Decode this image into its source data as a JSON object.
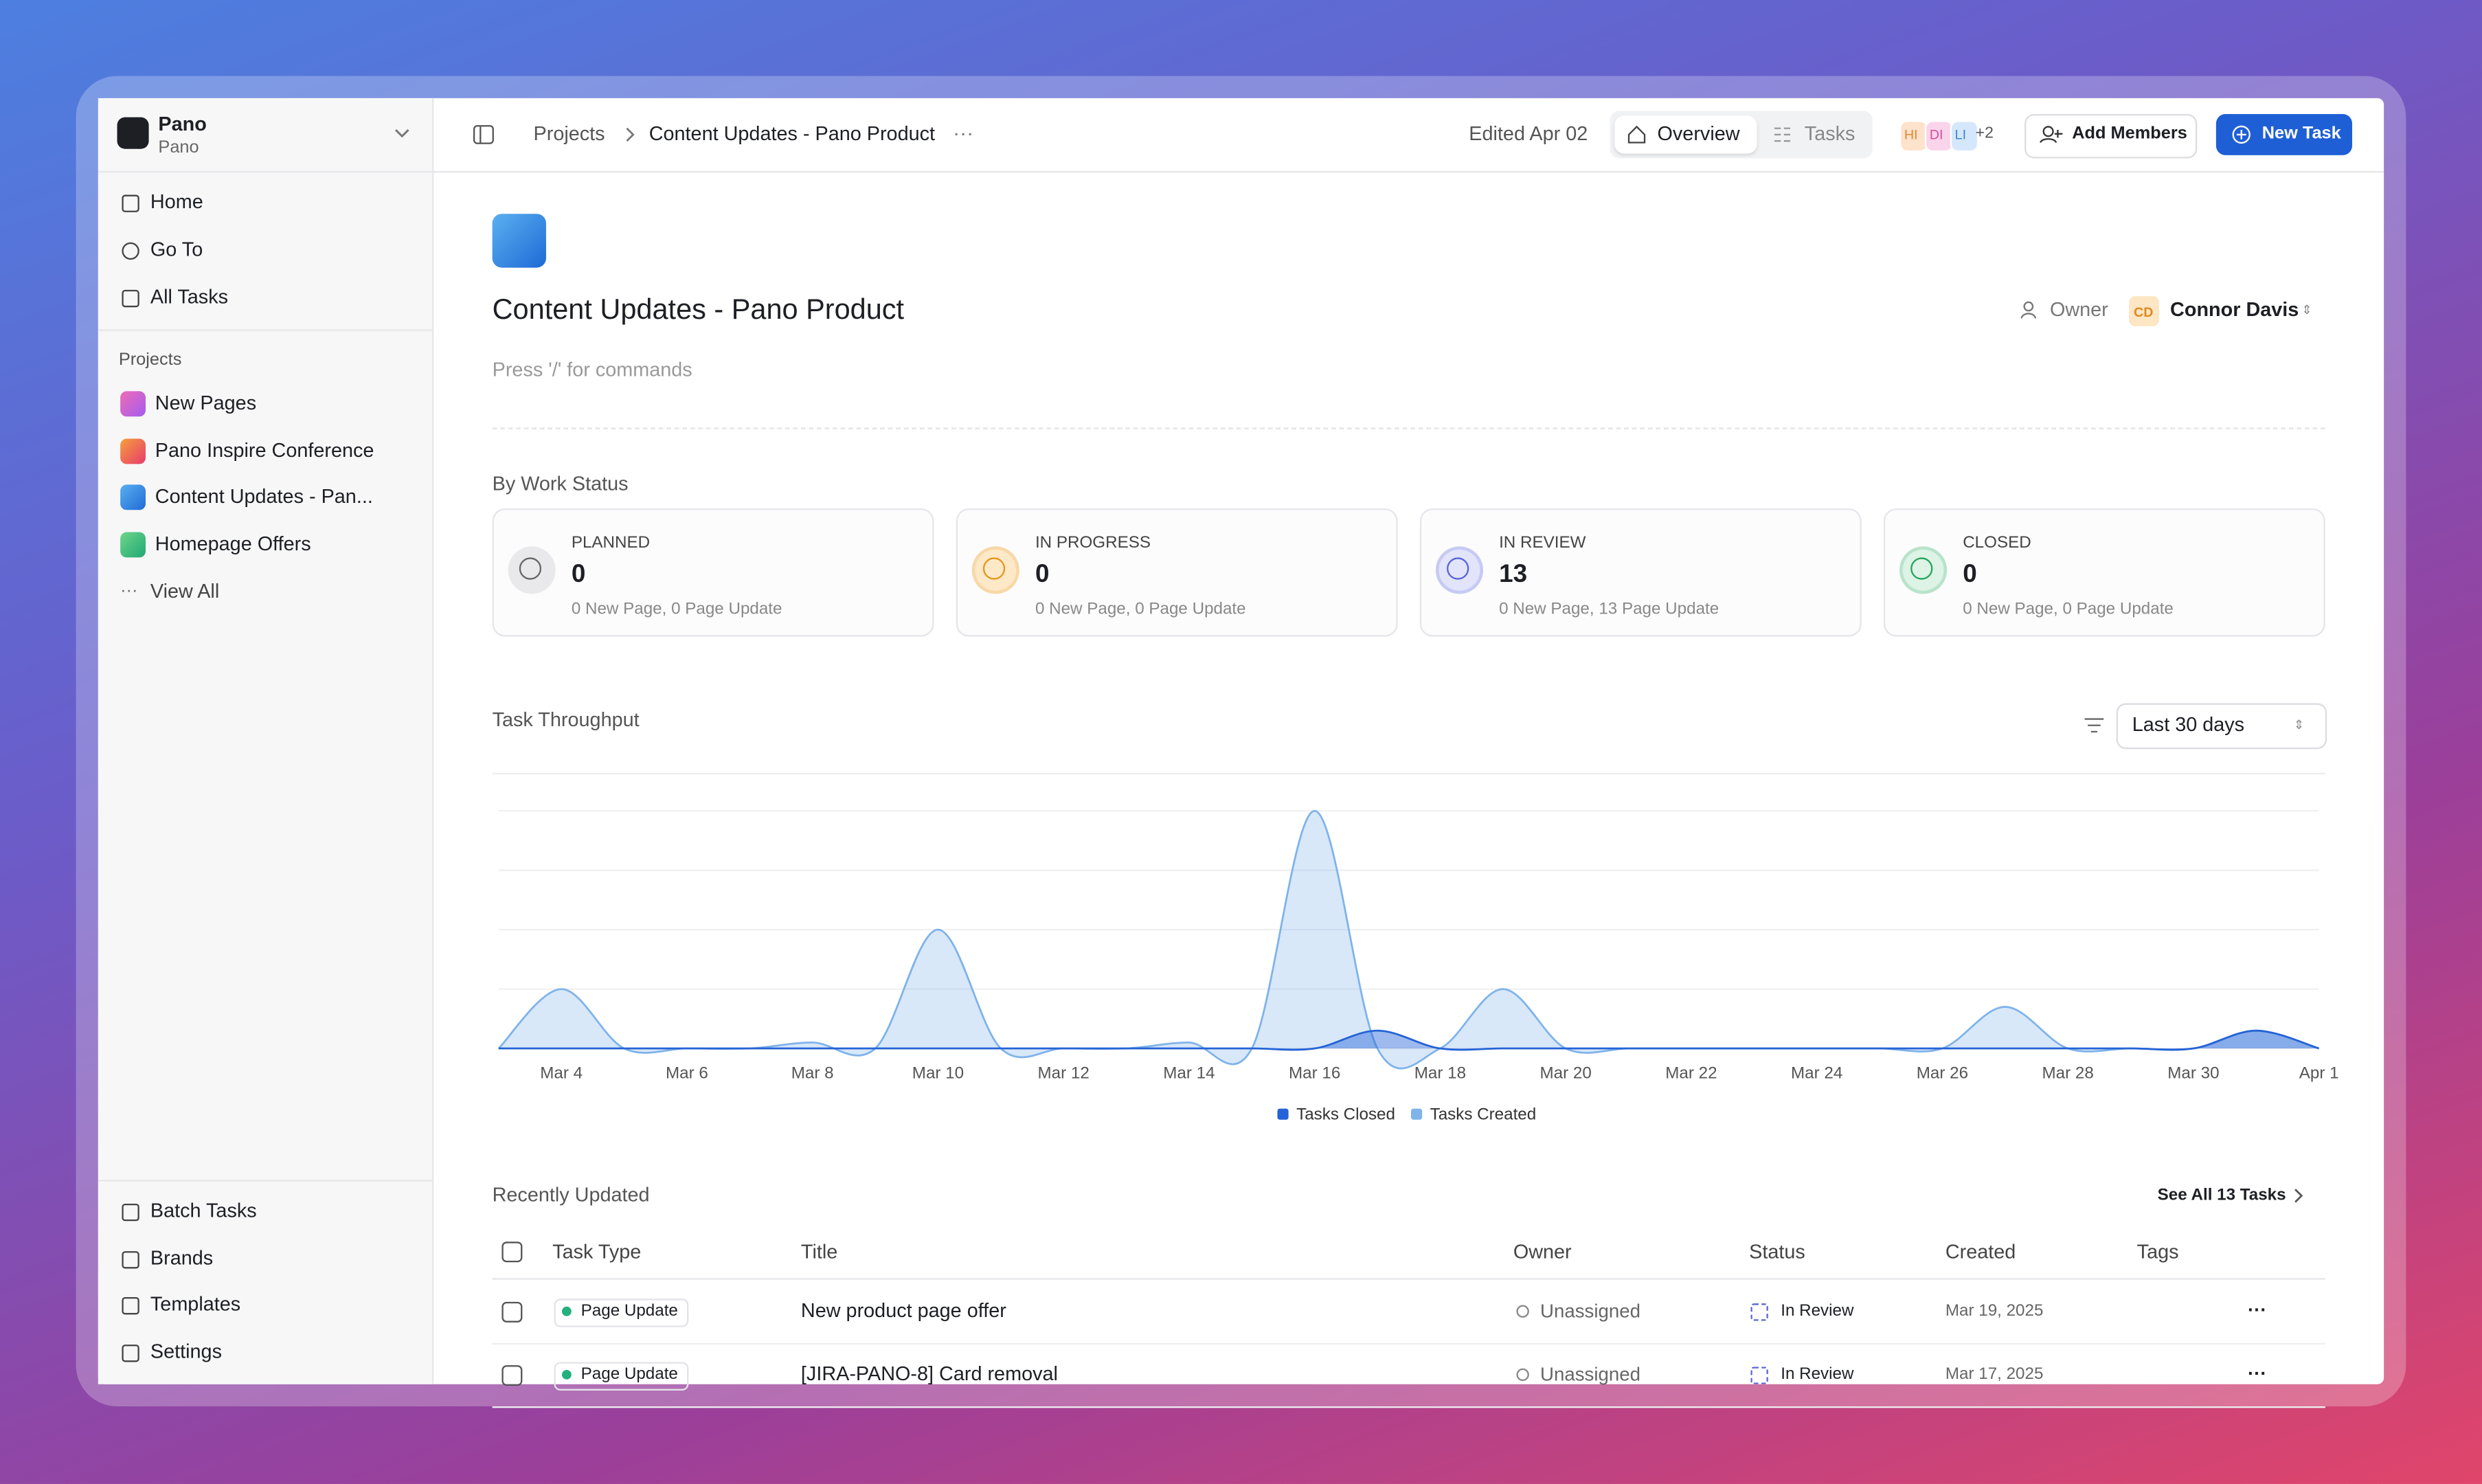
{
  "sidebar": {
    "workspace": "Pano",
    "workspace_sub": "Pano",
    "nav": [
      "Home",
      "Go To",
      "All Tasks"
    ],
    "projects_label": "Projects",
    "projects": [
      "New Pages",
      "Pano Inspire Conference",
      "Content Updates - Pan...",
      "Homepage Offers"
    ],
    "view_all": "View All",
    "footer_nav": [
      "Batch Tasks",
      "Brands",
      "Templates",
      "Settings"
    ]
  },
  "header": {
    "breadcrumb": [
      "Projects",
      "Content Updates - Pano Product"
    ],
    "edited": "Edited Apr 02",
    "tabs": [
      "Overview",
      "Tasks"
    ],
    "members": [
      "HI",
      "DI",
      "LI"
    ],
    "more_members": "+2",
    "add_members": "Add Members",
    "new_task": "New Task"
  },
  "project": {
    "title": "Content Updates - Pano Product",
    "owner_label": "Owner",
    "owner_initials": "CD",
    "owner": "Connor Davis",
    "placeholder": "Press '/' for commands"
  },
  "work_status": {
    "title": "By Work Status",
    "cards": [
      {
        "label": "PLANNED",
        "count": 0,
        "detail": "0 New Page, 0 Page Update"
      },
      {
        "label": "IN PROGRESS",
        "count": 0,
        "detail": "0 New Page, 0 Page Update"
      },
      {
        "label": "IN REVIEW",
        "count": 13,
        "detail": "0 New Page, 13 Page Update"
      },
      {
        "label": "CLOSED",
        "count": 0,
        "detail": "0 New Page, 0 Page Update"
      }
    ]
  },
  "throughput_filter": "Last 30 days",
  "chart_data": {
    "type": "area",
    "title": "Task Throughput",
    "categories": [
      null,
      "Mar 4",
      null,
      "Mar 6",
      null,
      "Mar 8",
      null,
      "Mar 10",
      null,
      "Mar 12",
      null,
      "Mar 14",
      null,
      "Mar 16",
      null,
      "Mar 18",
      null,
      "Mar 20",
      null,
      "Mar 22",
      null,
      "Mar 24",
      null,
      "Mar 26",
      null,
      "Mar 28",
      null,
      "Mar 30",
      null,
      "Apr 1"
    ],
    "series": [
      {
        "name": "Tasks Closed",
        "color": "#2563d6",
        "values": [
          0,
          0,
          0,
          0,
          0,
          0,
          0,
          0,
          0,
          0,
          0,
          0,
          0,
          0,
          0.3,
          0,
          0,
          0,
          0,
          0,
          0,
          0,
          0,
          0,
          0,
          0,
          0,
          0,
          0.3,
          0
        ]
      },
      {
        "name": "Tasks Created",
        "color": "#7fb3ea",
        "values": [
          0,
          1,
          0,
          0,
          0,
          0.1,
          0,
          2,
          0,
          0,
          0,
          0.1,
          0,
          4,
          0,
          0,
          1,
          0,
          0,
          0,
          0,
          0,
          0,
          0,
          0.7,
          0,
          0,
          0,
          0.3,
          0
        ]
      }
    ],
    "ylim": [
      0,
      4
    ]
  },
  "recent": {
    "title": "Recently Updated",
    "see_all": "See All 13 Tasks",
    "columns": [
      "Task Type",
      "Title",
      "Owner",
      "Status",
      "Created",
      "Tags"
    ],
    "rows": [
      [
        "Page Update",
        "New product page offer",
        "Unassigned",
        "In Review",
        "Mar 19, 2025"
      ],
      [
        "Page Update",
        "[JIRA-PANO-8] Card removal",
        "Unassigned",
        "In Review",
        "Mar 17, 2025"
      ]
    ]
  }
}
